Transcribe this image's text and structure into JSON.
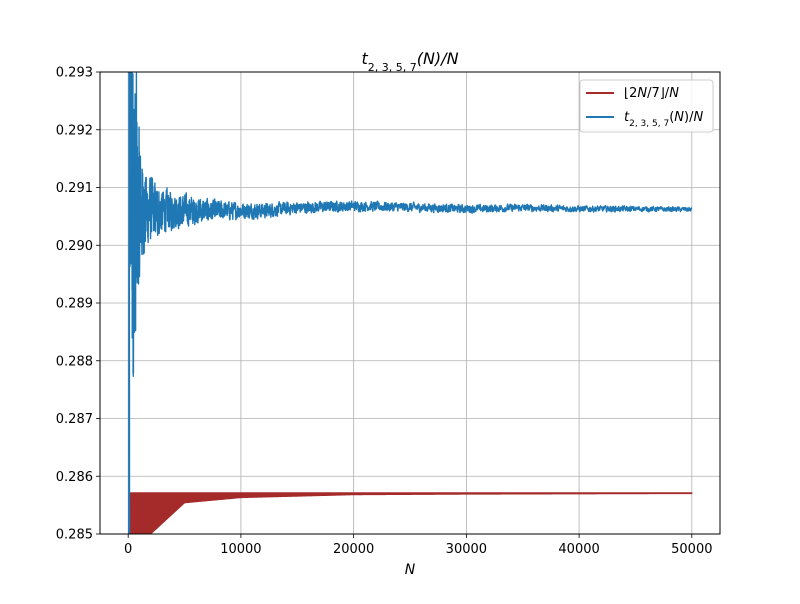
{
  "chart_data": {
    "type": "line",
    "title": "t_{2,3,5,7}(N)/N",
    "xlabel": "N",
    "ylabel": "",
    "xlim": [
      -2500,
      52500
    ],
    "ylim": [
      0.285,
      0.293
    ],
    "xticks": [
      0,
      10000,
      20000,
      30000,
      40000,
      50000
    ],
    "xtick_labels": [
      "0",
      "10000",
      "20000",
      "30000",
      "40000",
      "50000"
    ],
    "yticks": [
      0.285,
      0.286,
      0.287,
      0.288,
      0.289,
      0.29,
      0.291,
      0.292,
      0.293
    ],
    "ytick_labels": [
      "0.285",
      "0.286",
      "0.287",
      "0.288",
      "0.289",
      "0.290",
      "0.291",
      "0.292",
      "0.293"
    ],
    "grid": true,
    "legend_position": "top-right",
    "series": [
      {
        "name": "⌊2N/7⌋/N",
        "color": "#a52a2a",
        "limit": 0.285714,
        "band_start_x": 200,
        "x": [
          200,
          500,
          1000,
          2000,
          5000,
          10000,
          20000,
          30000,
          50000
        ],
        "y_min": [
          0.2835,
          0.285,
          0.28429,
          0.285,
          0.28554,
          0.28563,
          0.28568,
          0.28569,
          0.2857
        ],
        "y_max": [
          0.285714,
          0.285714,
          0.285714,
          0.285714,
          0.285714,
          0.285714,
          0.285714,
          0.285714,
          0.285714
        ]
      },
      {
        "name": "t_{2,3,5,7}(N)/N",
        "color": "#1f77b4",
        "x": [
          100,
          250,
          400,
          500,
          700,
          900,
          1200,
          1500,
          2000,
          3000,
          4000,
          6000,
          8000,
          10000,
          12000,
          15000,
          20000,
          25000,
          30000,
          35000,
          40000,
          45000,
          50000
        ],
        "y_mid": [
          0.291,
          0.292,
          0.2905,
          0.2905,
          0.2905,
          0.2906,
          0.2906,
          0.2906,
          0.2906,
          0.2906,
          0.2906,
          0.2906,
          0.2906,
          0.2906,
          0.2906,
          0.29065,
          0.29068,
          0.29066,
          0.29063,
          0.29065,
          0.29063,
          0.29063,
          0.29062
        ],
        "y_amp": [
          0.003,
          0.004,
          0.0045,
          0.0037,
          0.0033,
          0.0018,
          0.0012,
          0.0009,
          0.0007,
          0.0005,
          0.0004,
          0.0003,
          0.00022,
          0.00018,
          0.00016,
          0.00013,
          0.00011,
          0.0001,
          9e-05,
          8e-05,
          7e-05,
          6e-05,
          5e-05
        ]
      }
    ]
  }
}
